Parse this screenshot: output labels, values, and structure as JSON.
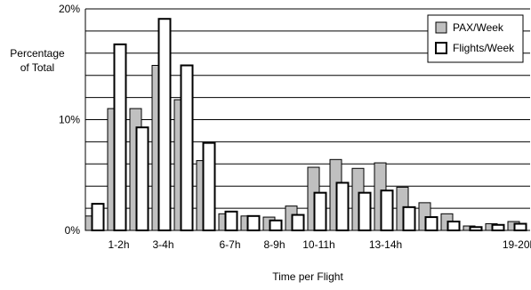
{
  "chart_data": {
    "type": "bar",
    "title": "",
    "ylabel_lines": [
      "Percentage",
      "of Total"
    ],
    "xlabel": "Time per Flight",
    "ylim": [
      0,
      20
    ],
    "y_ticks": [
      {
        "value": 0,
        "label": "0%"
      },
      {
        "value": 10,
        "label": "10%"
      },
      {
        "value": 20,
        "label": "20%"
      }
    ],
    "grid_step": 2,
    "categories": [
      "0-1h",
      "1-2h",
      "2-3h",
      "3-4h",
      "4-5h",
      "5-6h",
      "6-7h",
      "7-8h",
      "8-9h",
      "9-10h",
      "10-11h",
      "11-12h",
      "12-13h",
      "13-14h",
      "14-15h",
      "15-16h",
      "16-17h",
      "17-18h",
      "18-19h",
      "19-20h"
    ],
    "x_tick_labels": [
      "",
      "1-2h",
      "",
      "3-4h",
      "",
      "",
      "6-7h",
      "",
      "8-9h",
      "",
      "10-11h",
      "",
      "",
      "13-14h",
      "",
      "",
      "",
      "",
      "",
      "19-20h"
    ],
    "series": [
      {
        "name": "PAX/Week",
        "color": "#c0c0c0",
        "values": [
          1.3,
          11.0,
          11.0,
          14.9,
          11.8,
          6.3,
          1.5,
          1.3,
          1.2,
          2.2,
          5.7,
          6.4,
          5.6,
          6.1,
          3.9,
          2.5,
          1.5,
          0.4,
          0.6,
          0.8
        ]
      },
      {
        "name": "Flights/Week",
        "color": "#ffffff",
        "values": [
          2.4,
          16.8,
          9.3,
          19.1,
          14.9,
          7.9,
          1.7,
          1.3,
          0.9,
          1.4,
          3.4,
          4.3,
          3.4,
          3.6,
          2.1,
          1.2,
          0.8,
          0.3,
          0.5,
          0.6
        ]
      }
    ],
    "legend_position": "top-right",
    "grid": true
  }
}
